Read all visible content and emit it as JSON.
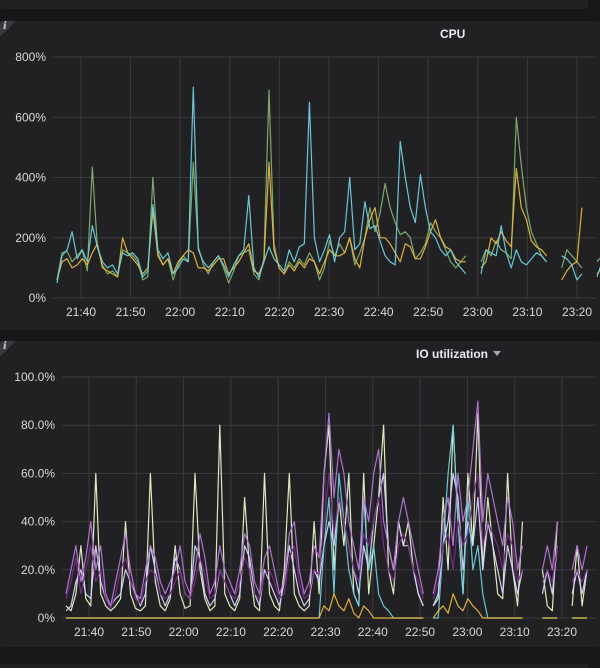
{
  "panels": [
    {
      "title": "CPU",
      "has_menu": false,
      "info_glyph": "i",
      "chart_data": {
        "type": "line",
        "title": "CPU",
        "x_ticks": [
          "21:40",
          "21:50",
          "22:00",
          "22:10",
          "22:20",
          "22:30",
          "22:40",
          "22:50",
          "23:00",
          "23:10",
          "23:20"
        ],
        "y_ticks": [
          "0%",
          "200%",
          "400%",
          "600%",
          "800%"
        ],
        "ylim": [
          0,
          800
        ],
        "xlim": [
          0,
          106
        ],
        "grid": true,
        "series_colors": [
          "#7eb26d",
          "#eab839",
          "#6ed0e0"
        ],
        "series": [
          {
            "values": [
              60,
              150,
              155,
              120,
              140,
              160,
              90,
              435,
              170,
              110,
              80,
              90,
              70,
              160,
              150,
              140,
              120,
              60,
              70,
              400,
              150,
              110,
              130,
              60,
              110,
              140,
              120,
              450,
              170,
              110,
              80,
              120,
              140,
              100,
              50,
              90,
              140,
              150,
              160,
              80,
              60,
              130,
              690,
              180,
              100,
              80,
              120,
              100,
              130,
              110,
              150,
              120,
              60,
              100,
              190,
              140,
              180,
              150,
              200,
              110,
              150,
              200,
              300,
              220,
              280,
              380,
              300,
              250,
              210,
              220,
              200,
              130,
              150,
              180,
              250,
              220,
              200,
              160,
              120,
              100,
              120,
              140,
              null,
              null,
              120,
              160,
              140,
              190,
              160,
              150,
              130,
              600,
              440,
              300,
              220,
              180,
              140,
              120,
              null,
              null,
              100,
              160,
              140,
              120,
              100,
              null,
              null,
              120,
              140,
              110
            ]
          },
          {
            "values": [
              60,
              120,
              130,
              100,
              110,
              130,
              110,
              150,
              180,
              100,
              90,
              80,
              70,
              200,
              150,
              130,
              110,
              80,
              100,
              290,
              140,
              110,
              130,
              80,
              120,
              140,
              160,
              150,
              100,
              100,
              90,
              110,
              130,
              130,
              80,
              100,
              120,
              150,
              180,
              90,
              80,
              120,
              450,
              160,
              100,
              80,
              110,
              90,
              120,
              100,
              130,
              120,
              80,
              120,
              160,
              140,
              140,
              150,
              200,
              130,
              100,
              200,
              260,
              300,
              200,
              200,
              180,
              150,
              120,
              180,
              170,
              130,
              130,
              170,
              220,
              260,
              200,
              170,
              160,
              130,
              120,
              120,
              null,
              null,
              100,
              120,
              200,
              180,
              220,
              190,
              170,
              430,
              300,
              260,
              190,
              170,
              160,
              140,
              null,
              null,
              60,
              90,
              110,
              120,
              300,
              null,
              null,
              80,
              100,
              180
            ]
          },
          {
            "values": [
              50,
              140,
              160,
              220,
              130,
              160,
              120,
              240,
              170,
              120,
              100,
              110,
              80,
              150,
              140,
              150,
              130,
              70,
              90,
              310,
              160,
              130,
              150,
              80,
              100,
              130,
              120,
              700,
              160,
              120,
              100,
              120,
              140,
              110,
              70,
              110,
              140,
              160,
              340,
              100,
              70,
              120,
              170,
              130,
              110,
              90,
              160,
              120,
              170,
              180,
              650,
              200,
              120,
              160,
              210,
              120,
              200,
              220,
              400,
              160,
              180,
              320,
              230,
              240,
              190,
              140,
              120,
              110,
              520,
              400,
              300,
              250,
              410,
              300,
              220,
              200,
              160,
              140,
              160,
              120,
              100,
              80,
              null,
              null,
              80,
              160,
              150,
              140,
              240,
              150,
              100,
              160,
              120,
              110,
              130,
              150,
              140,
              120,
              null,
              null,
              140,
              130,
              110,
              60,
              80,
              null,
              null,
              70,
              120,
              150
            ]
          }
        ]
      }
    },
    {
      "title": "IO utilization",
      "has_menu": true,
      "info_glyph": "i",
      "chart_data": {
        "type": "line",
        "title": "IO utilization",
        "x_ticks": [
          "21:40",
          "21:50",
          "22:00",
          "22:10",
          "22:20",
          "22:30",
          "22:40",
          "22:50",
          "23:00",
          "23:10",
          "23:20"
        ],
        "y_ticks": [
          "0%",
          "20.0%",
          "40.0%",
          "60.0%",
          "80.0%",
          "100.0%"
        ],
        "ylim": [
          0,
          100
        ],
        "xlim": [
          0,
          106
        ],
        "grid": true,
        "series_colors": [
          "#e5f8c4",
          "#d6d6ff",
          "#6ed0e0",
          "#eab839",
          "#b877d9",
          "#7a2a8a"
        ],
        "series": [
          {
            "values": [
              5,
              3,
              10,
              30,
              8,
              5,
              60,
              10,
              5,
              3,
              5,
              8,
              40,
              10,
              4,
              3,
              5,
              60,
              15,
              5,
              3,
              8,
              30,
              10,
              4,
              5,
              60,
              20,
              8,
              3,
              5,
              80,
              10,
              5,
              3,
              8,
              50,
              20,
              5,
              3,
              60,
              10,
              5,
              3,
              20,
              60,
              10,
              5,
              3,
              5,
              40,
              10,
              60,
              80,
              20,
              50,
              30,
              60,
              10,
              5,
              60,
              10,
              30,
              50,
              80,
              20,
              10,
              40,
              30,
              40,
              20,
              10,
              5,
              null,
              5,
              8,
              50,
              20,
              80,
              40,
              10,
              60,
              30,
              85,
              20,
              50,
              30,
              10,
              8,
              60,
              20,
              5,
              40,
              null,
              null,
              null,
              20,
              5,
              3,
              40,
              null,
              null,
              5,
              30,
              5,
              20
            ]
          },
          {
            "values": [
              3,
              5,
              15,
              20,
              10,
              8,
              30,
              15,
              8,
              5,
              8,
              10,
              20,
              15,
              10,
              5,
              10,
              30,
              20,
              10,
              5,
              10,
              25,
              20,
              10,
              8,
              30,
              25,
              10,
              5,
              8,
              20,
              15,
              10,
              5,
              10,
              30,
              25,
              10,
              5,
              20,
              15,
              10,
              5,
              15,
              30,
              20,
              10,
              5,
              8,
              20,
              15,
              30,
              40,
              30,
              50,
              40,
              30,
              20,
              10,
              30,
              20,
              40,
              50,
              60,
              30,
              20,
              40,
              30,
              30,
              20,
              10,
              5,
              null,
              5,
              10,
              30,
              40,
              60,
              50,
              20,
              40,
              30,
              50,
              20,
              40,
              30,
              20,
              10,
              30,
              20,
              10,
              20,
              null,
              null,
              null,
              10,
              20,
              10,
              30,
              null,
              null,
              10,
              20,
              10,
              20
            ]
          },
          {
            "values": [
              0,
              0,
              0,
              0,
              0,
              0,
              0,
              0,
              0,
              0,
              0,
              0,
              0,
              0,
              0,
              0,
              0,
              0,
              0,
              0,
              0,
              0,
              0,
              0,
              0,
              0,
              0,
              0,
              0,
              0,
              0,
              0,
              0,
              0,
              0,
              0,
              0,
              0,
              0,
              0,
              0,
              0,
              0,
              0,
              0,
              0,
              0,
              0,
              0,
              0,
              0,
              0,
              30,
              50,
              10,
              60,
              40,
              20,
              10,
              5,
              50,
              20,
              30,
              10,
              5,
              3,
              0,
              0,
              0,
              0,
              0,
              0,
              0,
              null,
              0,
              0,
              30,
              60,
              80,
              40,
              10,
              50,
              20,
              30,
              10,
              0,
              0,
              0,
              0,
              0,
              0,
              0,
              0,
              null,
              null,
              null,
              0,
              0,
              0,
              0,
              null,
              null,
              0,
              0,
              0,
              0
            ]
          },
          {
            "values": [
              0,
              0,
              0,
              0,
              0,
              0,
              0,
              0,
              0,
              0,
              0,
              0,
              0,
              0,
              0,
              0,
              0,
              0,
              0,
              0,
              0,
              0,
              0,
              0,
              0,
              0,
              0,
              0,
              0,
              0,
              0,
              0,
              0,
              0,
              0,
              0,
              0,
              0,
              0,
              0,
              0,
              0,
              0,
              0,
              0,
              0,
              0,
              0,
              0,
              0,
              0,
              0,
              5,
              3,
              10,
              5,
              3,
              8,
              2,
              0,
              5,
              3,
              0,
              0,
              0,
              0,
              0,
              0,
              0,
              0,
              0,
              0,
              0,
              null,
              0,
              3,
              5,
              2,
              10,
              5,
              3,
              8,
              5,
              3,
              0,
              0,
              0,
              0,
              0,
              0,
              0,
              0,
              0,
              null,
              null,
              null,
              0,
              0,
              0,
              0,
              null,
              null,
              0,
              0,
              0,
              0
            ]
          },
          {
            "values": [
              10,
              20,
              30,
              15,
              25,
              40,
              20,
              30,
              10,
              5,
              15,
              25,
              35,
              20,
              10,
              8,
              20,
              30,
              25,
              15,
              10,
              15,
              20,
              30,
              15,
              10,
              20,
              35,
              25,
              10,
              15,
              30,
              20,
              15,
              10,
              20,
              35,
              30,
              15,
              10,
              25,
              30,
              20,
              10,
              15,
              35,
              40,
              20,
              10,
              15,
              30,
              25,
              60,
              85,
              50,
              70,
              60,
              40,
              30,
              20,
              50,
              40,
              60,
              70,
              40,
              30,
              20,
              40,
              50,
              40,
              30,
              20,
              10,
              null,
              10,
              20,
              40,
              50,
              30,
              60,
              40,
              50,
              70,
              90,
              40,
              60,
              50,
              40,
              30,
              50,
              40,
              20,
              30,
              null,
              null,
              null,
              20,
              30,
              20,
              40,
              null,
              null,
              20,
              30,
              20,
              30
            ]
          },
          {
            "values": [
              8,
              15,
              25,
              10,
              20,
              30,
              15,
              20,
              8,
              4,
              10,
              20,
              25,
              15,
              8,
              6,
              15,
              20,
              18,
              10,
              8,
              10,
              15,
              20,
              10,
              8,
              15,
              25,
              18,
              8,
              10,
              20,
              15,
              10,
              8,
              15,
              25,
              20,
              10,
              8,
              18,
              20,
              15,
              8,
              10,
              25,
              30,
              15,
              8,
              10,
              20,
              18,
              40,
              60,
              35,
              50,
              40,
              30,
              20,
              15,
              35,
              30,
              40,
              50,
              30,
              20,
              15,
              30,
              35,
              30,
              20,
              15,
              8,
              null,
              8,
              15,
              30,
              35,
              20,
              40,
              30,
              35,
              50,
              60,
              30,
              40,
              35,
              30,
              20,
              35,
              30,
              15,
              20,
              null,
              null,
              null,
              15,
              20,
              15,
              30,
              null,
              null,
              15,
              20,
              15,
              20
            ]
          }
        ]
      }
    }
  ]
}
